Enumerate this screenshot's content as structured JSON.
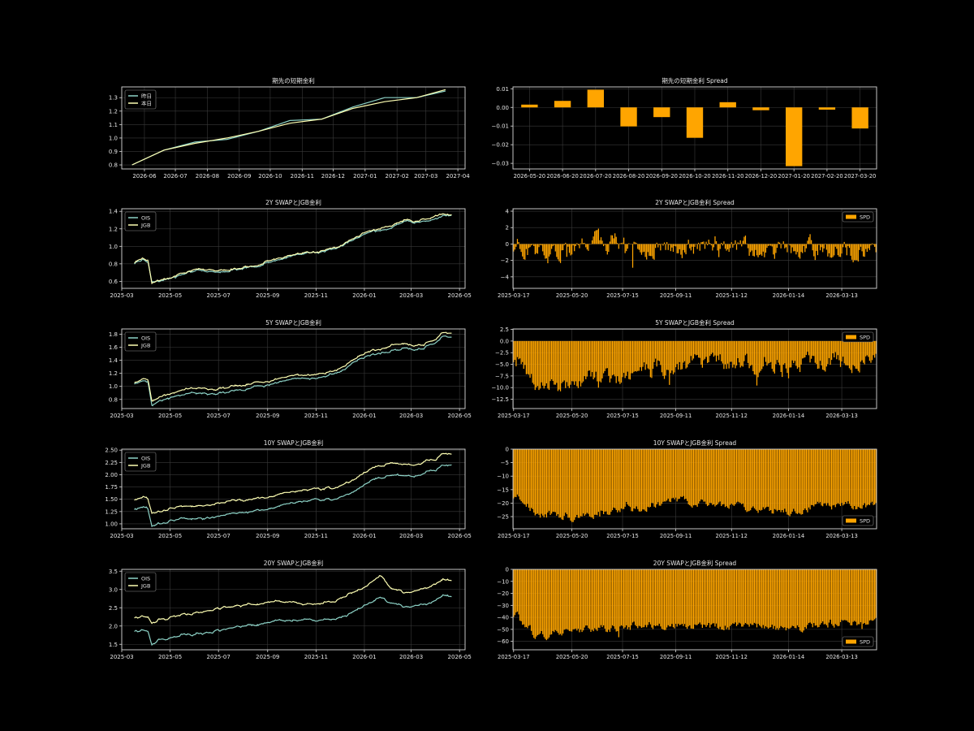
{
  "colors": {
    "background": "#000000",
    "axis": "#d9d9d9",
    "grid": "#3a3a3a",
    "text": "#e6e6e6",
    "series_a": "#8dd3c7",
    "series_b": "#feffb3",
    "bar": "#ffa500"
  },
  "chart_data": [
    {
      "id": "short-rate-line",
      "type": "line",
      "title": "期先の短期金利",
      "xlabel": "",
      "ylabel": "",
      "x_axis": "date",
      "xlim": [
        "2026-05-10",
        "2027-04-08"
      ],
      "ylim": [
        0.77,
        1.38
      ],
      "xticks": [
        "2026-06",
        "2026-07",
        "2026-08",
        "2026-09",
        "2026-10",
        "2026-11",
        "2026-12",
        "2027-01",
        "2027-02",
        "2027-03",
        "2027-04"
      ],
      "yticks": [
        0.8,
        0.9,
        1.0,
        1.1,
        1.2,
        1.3
      ],
      "grid": true,
      "legend": "upper-left",
      "series": [
        {
          "name": "昨日",
          "color": "#8dd3c7",
          "x": [
            "2026-05-20",
            "2026-06-20",
            "2026-07-20",
            "2026-08-20",
            "2026-09-20",
            "2026-10-20",
            "2026-11-20",
            "2026-12-20",
            "2027-01-20",
            "2027-02-20",
            "2027-03-20"
          ],
          "values": [
            0.8,
            0.91,
            0.97,
            0.99,
            1.05,
            1.13,
            1.14,
            1.23,
            1.3,
            1.3,
            1.35
          ]
        },
        {
          "name": "本日",
          "color": "#feffb3",
          "x": [
            "2026-05-20",
            "2026-06-20",
            "2026-07-20",
            "2026-08-20",
            "2026-09-20",
            "2026-10-20",
            "2026-11-20",
            "2026-12-20",
            "2027-01-20",
            "2027-02-20",
            "2027-03-20"
          ],
          "values": [
            0.8,
            0.91,
            0.96,
            1.0,
            1.05,
            1.11,
            1.14,
            1.22,
            1.27,
            1.3,
            1.36
          ]
        }
      ]
    },
    {
      "id": "short-rate-spread",
      "type": "bar",
      "title": "期先の短期金利 Spread",
      "xlabel": "",
      "ylabel": "",
      "ylim": [
        -0.033,
        0.011
      ],
      "yticks": [
        0.01,
        0.0,
        -0.01,
        -0.02,
        -0.03
      ],
      "ytick_labels": [
        "0.01",
        "0.00",
        "−0.01",
        "−0.02",
        "−0.03"
      ],
      "grid": true,
      "categories": [
        "2026-05-20",
        "2026-06-20",
        "2026-07-20",
        "2026-08-20",
        "2026-09-20",
        "2026-10-20",
        "2026-11-20",
        "2026-12-20",
        "2027-01-20",
        "2027-02-20",
        "2027-03-20"
      ],
      "values": [
        0.0015,
        0.0035,
        0.0095,
        -0.0102,
        -0.0052,
        -0.0163,
        0.0028,
        -0.0015,
        -0.0315,
        -0.0012,
        -0.0113
      ]
    },
    {
      "id": "swap-2y-line",
      "type": "line",
      "title": "2Y SWAPとJGB金利",
      "xlabel": "",
      "ylabel": "",
      "x_axis": "date",
      "xlim": [
        "2025-03-01",
        "2026-05-08"
      ],
      "ylim": [
        0.52,
        1.43
      ],
      "xticks": [
        "2025-03",
        "2025-05",
        "2025-07",
        "2025-09",
        "2025-11",
        "2026-01",
        "2026-03",
        "2026-05"
      ],
      "yticks": [
        0.6,
        0.8,
        1.0,
        1.2,
        1.4
      ],
      "grid": true,
      "legend": "upper-left",
      "anchors": {
        "x": [
          "2025-03-17",
          "2025-03-28",
          "2025-04-03",
          "2025-04-08",
          "2025-04-16",
          "2025-04-25",
          "2025-05-15",
          "2025-06-05",
          "2025-06-25",
          "2025-07-15",
          "2025-08-05",
          "2025-08-25",
          "2025-09-15",
          "2025-10-01",
          "2025-10-15",
          "2025-11-05",
          "2025-11-25",
          "2025-12-10",
          "2026-01-01",
          "2026-01-20",
          "2026-02-05",
          "2026-02-20",
          "2026-03-05",
          "2026-03-20",
          "2026-04-01",
          "2026-04-10",
          "2026-04-21"
        ],
        "OIS": [
          0.81,
          0.85,
          0.82,
          0.59,
          0.62,
          0.62,
          0.68,
          0.72,
          0.7,
          0.73,
          0.76,
          0.8,
          0.84,
          0.9,
          0.92,
          0.92,
          0.96,
          1.04,
          1.14,
          1.18,
          1.22,
          1.28,
          1.28,
          1.3,
          1.32,
          1.36,
          1.36
        ],
        "JGB": [
          0.82,
          0.87,
          0.84,
          0.58,
          0.63,
          0.63,
          0.7,
          0.73,
          0.72,
          0.74,
          0.77,
          0.81,
          0.85,
          0.91,
          0.92,
          0.93,
          0.97,
          1.05,
          1.16,
          1.2,
          1.24,
          1.3,
          1.29,
          1.32,
          1.35,
          1.38,
          1.37
        ]
      },
      "series": [
        {
          "name": "OIS",
          "color": "#8dd3c7"
        },
        {
          "name": "JGB",
          "color": "#feffb3"
        }
      ]
    },
    {
      "id": "swap-2y-spread",
      "type": "bar",
      "title": "2Y SWAPとJGB金利  Spread",
      "xlabel": "",
      "ylabel": "",
      "ylim": [
        -5.4,
        4.3
      ],
      "yticks": [
        4,
        2,
        0,
        -2,
        -4
      ],
      "ytick_labels": [
        "4",
        "2",
        "0",
        "−2",
        "−4"
      ],
      "xticks": [
        "2025-03-17",
        "2025-05-20",
        "2025-07-15",
        "2025-09-11",
        "2025-11-12",
        "2026-01-14",
        "2026-03-13"
      ],
      "grid": true,
      "legend": "upper-right",
      "series_name": "SPD",
      "anchors": {
        "x": [
          "2025-03-17",
          "2025-04-20",
          "2025-06-01",
          "2025-08-01",
          "2025-10-01",
          "2025-12-01",
          "2026-02-01",
          "2026-04-21"
        ],
        "values": [
          0.0,
          -1.5,
          0.5,
          -0.3,
          -0.5,
          -0.6,
          -0.4,
          -0.8
        ]
      },
      "amplitude": 1.3
    },
    {
      "id": "swap-5y-line",
      "type": "line",
      "title": "5Y SWAPとJGB金利",
      "xlabel": "",
      "ylabel": "",
      "x_axis": "date",
      "xlim": [
        "2025-03-01",
        "2026-05-08"
      ],
      "ylim": [
        0.66,
        1.88
      ],
      "xticks": [
        "2025-03",
        "2025-05",
        "2025-07",
        "2025-09",
        "2025-11",
        "2026-01",
        "2026-03",
        "2026-05"
      ],
      "yticks": [
        0.8,
        1.0,
        1.2,
        1.4,
        1.6,
        1.8
      ],
      "grid": true,
      "legend": "upper-left",
      "anchors": {
        "x": [
          "2025-03-17",
          "2025-03-28",
          "2025-04-03",
          "2025-04-08",
          "2025-04-16",
          "2025-04-25",
          "2025-05-15",
          "2025-06-05",
          "2025-06-25",
          "2025-07-15",
          "2025-08-05",
          "2025-08-25",
          "2025-09-15",
          "2025-10-01",
          "2025-10-15",
          "2025-11-05",
          "2025-11-25",
          "2025-12-10",
          "2026-01-01",
          "2026-01-20",
          "2026-02-05",
          "2026-02-20",
          "2026-03-05",
          "2026-03-20",
          "2026-04-01",
          "2026-04-10",
          "2026-04-21"
        ],
        "OIS": [
          1.05,
          1.1,
          1.07,
          0.72,
          0.78,
          0.8,
          0.86,
          0.88,
          0.88,
          0.92,
          0.97,
          1.0,
          1.05,
          1.1,
          1.12,
          1.15,
          1.2,
          1.28,
          1.45,
          1.52,
          1.55,
          1.58,
          1.56,
          1.62,
          1.68,
          1.78,
          1.76
        ],
        "JGB": [
          1.07,
          1.13,
          1.1,
          0.78,
          0.84,
          0.86,
          0.93,
          0.96,
          0.95,
          1.0,
          1.04,
          1.06,
          1.1,
          1.14,
          1.17,
          1.2,
          1.24,
          1.33,
          1.51,
          1.58,
          1.64,
          1.64,
          1.62,
          1.67,
          1.73,
          1.84,
          1.83
        ]
      },
      "series": [
        {
          "name": "OIS",
          "color": "#8dd3c7"
        },
        {
          "name": "JGB",
          "color": "#feffb3"
        }
      ]
    },
    {
      "id": "swap-5y-spread",
      "type": "bar",
      "title": "5Y SWAPとJGB金利  Spread",
      "xlabel": "",
      "ylabel": "",
      "ylim": [
        -14.5,
        2.6
      ],
      "yticks": [
        2.5,
        0.0,
        -2.5,
        -5.0,
        -7.5,
        -10.0,
        -12.5
      ],
      "ytick_labels": [
        "2.5",
        "0.0",
        "−2.5",
        "−5.0",
        "−7.5",
        "−10.0",
        "−12.5"
      ],
      "xticks": [
        "2025-03-17",
        "2025-05-20",
        "2025-07-15",
        "2025-09-11",
        "2025-11-12",
        "2026-01-14",
        "2026-03-13"
      ],
      "grid": true,
      "legend": "upper-right",
      "series_name": "SPD",
      "anchors": {
        "x": [
          "2025-03-17",
          "2025-04-10",
          "2025-06-01",
          "2025-07-20",
          "2025-09-01",
          "2025-10-15",
          "2025-12-01",
          "2026-01-14",
          "2026-02-20",
          "2026-04-21"
        ],
        "values": [
          -3.0,
          -9.5,
          -8.5,
          -8.0,
          -5.5,
          -4.0,
          -4.5,
          -6.0,
          -4.0,
          -4.5
        ]
      },
      "amplitude": 2.2
    },
    {
      "id": "swap-10y-line",
      "type": "line",
      "title": "10Y SWAPとJGB金利",
      "xlabel": "",
      "ylabel": "",
      "x_axis": "date",
      "xlim": [
        "2025-03-01",
        "2026-05-08"
      ],
      "ylim": [
        0.9,
        2.52
      ],
      "xticks": [
        "2025-03",
        "2025-05",
        "2025-07",
        "2025-09",
        "2025-11",
        "2026-01",
        "2026-03",
        "2026-05"
      ],
      "yticks": [
        1.0,
        1.25,
        1.5,
        1.75,
        2.0,
        2.25,
        2.5
      ],
      "ytick_labels": [
        "1.00",
        "1.25",
        "1.50",
        "1.75",
        "2.00",
        "2.25",
        "2.50"
      ],
      "grid": true,
      "legend": "upper-left",
      "anchors": {
        "x": [
          "2025-03-17",
          "2025-03-28",
          "2025-04-03",
          "2025-04-08",
          "2025-04-16",
          "2025-04-25",
          "2025-05-15",
          "2025-06-05",
          "2025-06-25",
          "2025-07-15",
          "2025-08-05",
          "2025-08-25",
          "2025-09-15",
          "2025-10-01",
          "2025-10-15",
          "2025-11-05",
          "2025-11-25",
          "2025-12-10",
          "2026-01-01",
          "2026-01-20",
          "2026-02-05",
          "2026-02-20",
          "2026-03-05",
          "2026-03-20",
          "2026-04-01",
          "2026-04-10",
          "2026-04-21"
        ],
        "OIS": [
          1.31,
          1.36,
          1.32,
          0.95,
          1.02,
          1.05,
          1.1,
          1.12,
          1.14,
          1.2,
          1.25,
          1.28,
          1.35,
          1.42,
          1.45,
          1.48,
          1.52,
          1.6,
          1.8,
          1.95,
          2.0,
          1.98,
          1.95,
          2.05,
          2.1,
          2.22,
          2.2
        ],
        "JGB": [
          1.5,
          1.56,
          1.52,
          1.22,
          1.27,
          1.3,
          1.35,
          1.38,
          1.4,
          1.46,
          1.5,
          1.54,
          1.58,
          1.65,
          1.68,
          1.7,
          1.75,
          1.84,
          2.05,
          2.2,
          2.25,
          2.2,
          2.18,
          2.28,
          2.32,
          2.45,
          2.42
        ]
      },
      "series": [
        {
          "name": "OIS",
          "color": "#8dd3c7"
        },
        {
          "name": "JGB",
          "color": "#feffb3"
        }
      ]
    },
    {
      "id": "swap-10y-spread",
      "type": "bar",
      "title": "10Y SWAPとJGB金利  Spread",
      "xlabel": "",
      "ylabel": "",
      "ylim": [
        -29.5,
        0
      ],
      "yticks": [
        0,
        -5,
        -10,
        -15,
        -20,
        -25
      ],
      "ytick_labels": [
        "0",
        "−5",
        "−10",
        "−15",
        "−20",
        "−25"
      ],
      "xticks": [
        "2025-03-17",
        "2025-05-20",
        "2025-07-15",
        "2025-09-11",
        "2025-11-12",
        "2026-01-14",
        "2026-03-13"
      ],
      "grid": true,
      "legend": "lower-right",
      "series_name": "SPD",
      "anchors": {
        "x": [
          "2025-03-17",
          "2025-04-10",
          "2025-05-20",
          "2025-07-15",
          "2025-09-11",
          "2025-10-20",
          "2025-12-01",
          "2026-01-14",
          "2026-02-20",
          "2026-04-21"
        ],
        "values": [
          -17.0,
          -24.0,
          -25.0,
          -23.0,
          -19.0,
          -21.0,
          -22.0,
          -23.0,
          -21.0,
          -21.0
        ]
      },
      "amplitude": 1.8
    },
    {
      "id": "swap-20y-line",
      "type": "line",
      "title": "20Y SWAPとJGB金利",
      "xlabel": "",
      "ylabel": "",
      "x_axis": "date",
      "xlim": [
        "2025-03-01",
        "2026-05-08"
      ],
      "ylim": [
        1.35,
        3.55
      ],
      "xticks": [
        "2025-03",
        "2025-05",
        "2025-07",
        "2025-09",
        "2025-11",
        "2026-01",
        "2026-03",
        "2026-05"
      ],
      "yticks": [
        1.5,
        2.0,
        2.5,
        3.0,
        3.5
      ],
      "grid": true,
      "legend": "upper-left",
      "anchors": {
        "x": [
          "2025-03-17",
          "2025-03-28",
          "2025-04-03",
          "2025-04-08",
          "2025-04-16",
          "2025-04-25",
          "2025-05-15",
          "2025-06-05",
          "2025-06-25",
          "2025-07-15",
          "2025-08-05",
          "2025-08-25",
          "2025-09-15",
          "2025-10-01",
          "2025-10-15",
          "2025-11-05",
          "2025-11-25",
          "2025-12-10",
          "2026-01-01",
          "2026-01-20",
          "2026-02-05",
          "2026-02-20",
          "2026-03-05",
          "2026-03-20",
          "2026-04-01",
          "2026-04-10",
          "2026-04-21"
        ],
        "OIS": [
          1.88,
          1.9,
          1.85,
          1.45,
          1.6,
          1.65,
          1.75,
          1.8,
          1.85,
          1.95,
          2.0,
          2.05,
          2.1,
          2.15,
          2.18,
          2.2,
          2.22,
          2.3,
          2.55,
          2.75,
          2.6,
          2.5,
          2.55,
          2.6,
          2.7,
          2.85,
          2.8
        ],
        "JGB": [
          2.25,
          2.3,
          2.25,
          2.05,
          2.15,
          2.2,
          2.3,
          2.38,
          2.45,
          2.55,
          2.58,
          2.6,
          2.62,
          2.65,
          2.6,
          2.65,
          2.7,
          2.85,
          3.05,
          3.35,
          3.0,
          2.9,
          2.95,
          3.05,
          3.15,
          3.3,
          3.25
        ]
      },
      "series": [
        {
          "name": "OIS",
          "color": "#8dd3c7"
        },
        {
          "name": "JGB",
          "color": "#feffb3"
        }
      ]
    },
    {
      "id": "swap-20y-spread",
      "type": "bar",
      "title": "20Y SWAPとJGB金利  Spread",
      "xlabel": "",
      "ylabel": "",
      "ylim": [
        -67,
        0
      ],
      "yticks": [
        0,
        -10,
        -20,
        -30,
        -40,
        -50,
        -60
      ],
      "ytick_labels": [
        "0",
        "−10",
        "−20",
        "−30",
        "−40",
        "−50",
        "−60"
      ],
      "xticks": [
        "2025-03-17",
        "2025-05-20",
        "2025-07-15",
        "2025-09-11",
        "2025-11-12",
        "2026-01-14",
        "2026-03-13"
      ],
      "grid": true,
      "legend": "lower-right",
      "series_name": "SPD",
      "anchors": {
        "x": [
          "2025-03-17",
          "2025-04-10",
          "2025-05-20",
          "2025-07-15",
          "2025-09-11",
          "2025-10-20",
          "2025-12-01",
          "2026-01-14",
          "2026-02-20",
          "2026-04-21"
        ],
        "values": [
          -37.0,
          -55.0,
          -52.0,
          -48.0,
          -46.0,
          -48.0,
          -46.0,
          -52.0,
          -45.0,
          -44.0
        ]
      },
      "amplitude": 4.0
    }
  ]
}
